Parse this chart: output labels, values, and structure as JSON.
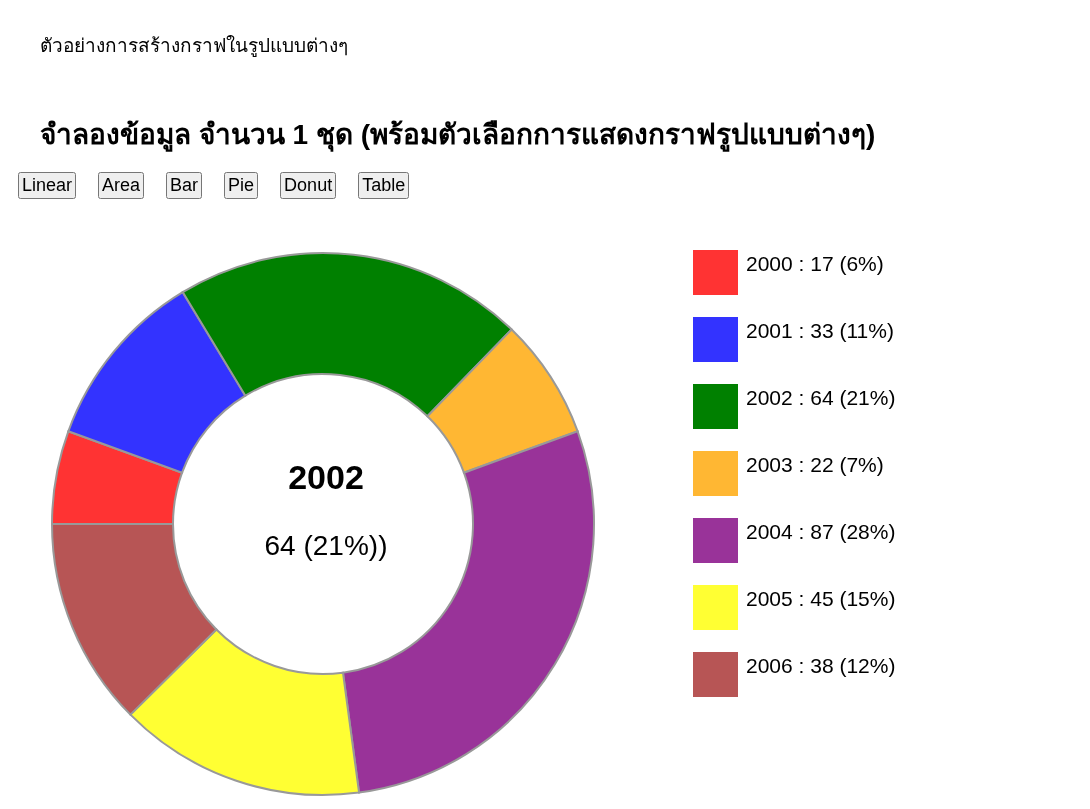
{
  "chart_data": {
    "type": "donut",
    "subtitle": "ตัวอย่างการสร้างกราฟในรูปแบบต่างๆ",
    "title": "จำลองข้อมูล จำนวน 1 ชุด (พร้อมตัวเลือกการแสดงกราฟรูปแบบต่างๆ)",
    "categories": [
      "2000",
      "2001",
      "2002",
      "2003",
      "2004",
      "2005",
      "2006"
    ],
    "values": [
      17,
      33,
      64,
      22,
      87,
      45,
      38
    ],
    "value_labels": [
      ": 17 (6%)",
      ": 33 (11%)",
      ": 64 (21%)",
      ": 22 (7%)",
      ": 87 (28%)",
      ": 45 (15%)",
      ": 38 (12%)"
    ],
    "colors": [
      "#ff3333",
      "#3333ff",
      "#008000",
      "#ffb733",
      "#993399",
      "#ffff33",
      "#b75555"
    ],
    "legend": "right",
    "annotations": [
      "2002",
      "64 (21%))",
      "Linear",
      "Area",
      "Bar",
      "Pie",
      "Donut",
      "Table"
    ]
  }
}
